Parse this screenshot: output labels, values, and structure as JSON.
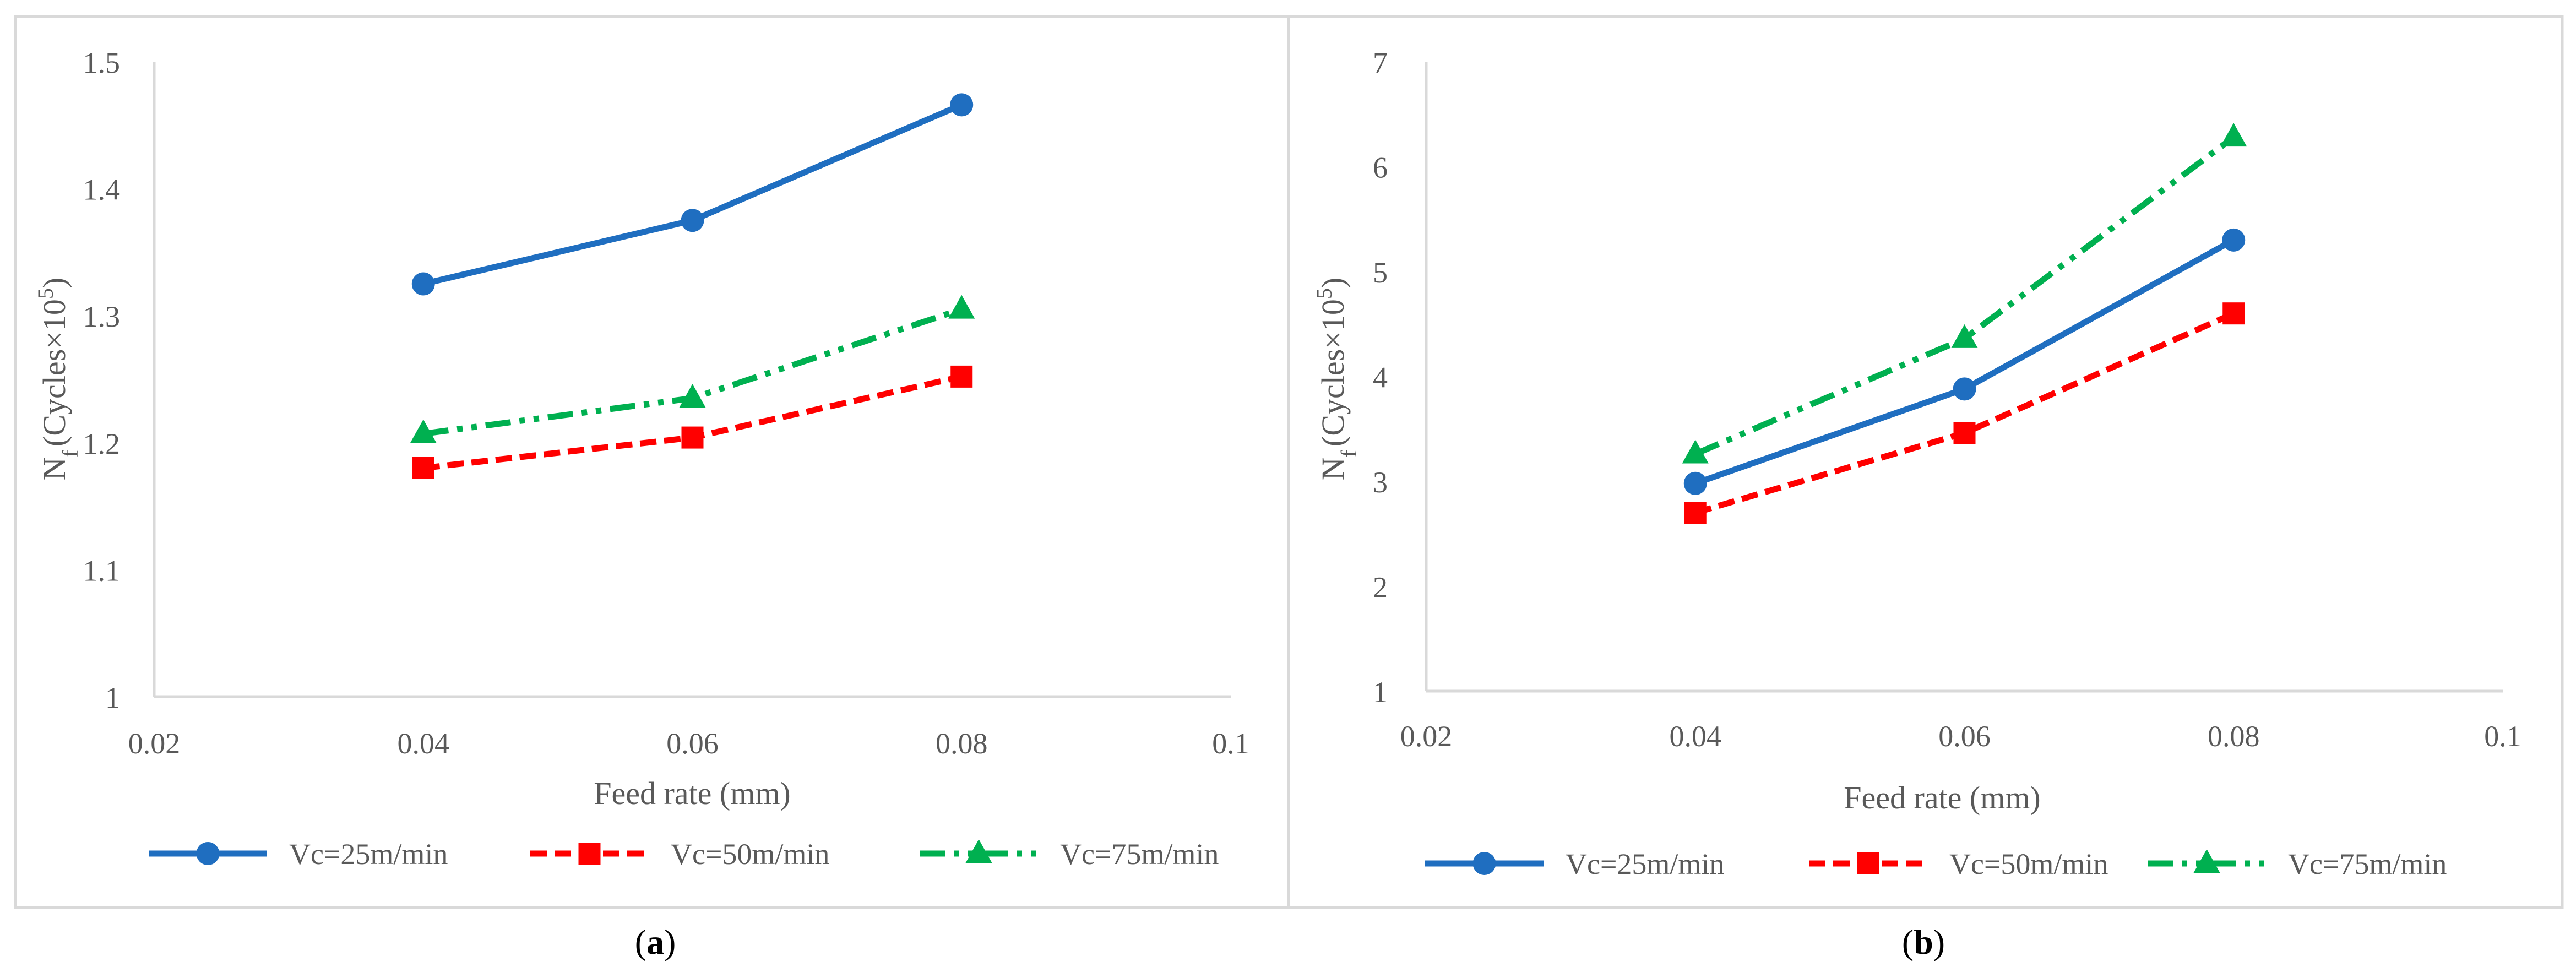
{
  "chart_data": [
    {
      "panel": "a",
      "caption": "a",
      "type": "line",
      "title": "",
      "xlabel": "Feed rate (mm)",
      "ylabel_main": "N",
      "ylabel_sub": "f",
      "ylabel_rest": "(Cycles×10",
      "ylabel_sup": "5",
      "ylabel_close": ")",
      "xlim": [
        0.02,
        0.1
      ],
      "ylim": [
        1,
        1.5
      ],
      "xticks": [
        0.02,
        0.04,
        0.06,
        0.08,
        0.1
      ],
      "xtick_labels": [
        "0.02",
        "0.04",
        "0.06",
        "0.08",
        "0.1"
      ],
      "yticks": [
        1,
        1.1,
        1.2,
        1.3,
        1.4,
        1.5
      ],
      "ytick_labels": [
        "1",
        "1.1",
        "1.2",
        "1.3",
        "1.4",
        "1.5"
      ],
      "grid": false,
      "legend_position": "bottom",
      "x": [
        0.04,
        0.06,
        0.08
      ],
      "series": [
        {
          "name": "Vc=25m/min",
          "values": [
            1.325,
            1.375,
            1.466
          ],
          "color": "#1F6EC0",
          "marker": "circle",
          "dash": "solid"
        },
        {
          "name": "Vc=50m/min",
          "values": [
            1.18,
            1.204,
            1.252
          ],
          "color": "#FF0000",
          "marker": "square",
          "dash": "dash"
        },
        {
          "name": "Vc=75m/min",
          "values": [
            1.207,
            1.235,
            1.305
          ],
          "color": "#00B050",
          "marker": "triangle",
          "dash": "dashdotdot"
        }
      ]
    },
    {
      "panel": "b",
      "caption": "b",
      "type": "line",
      "title": "",
      "xlabel": "Feed rate (mm)",
      "ylabel_main": "N",
      "ylabel_sub": "f",
      "ylabel_rest": "(Cycles×10",
      "ylabel_sup": "5",
      "ylabel_close": ")",
      "xlim": [
        0.02,
        0.1
      ],
      "ylim": [
        1,
        7
      ],
      "xticks": [
        0.02,
        0.04,
        0.06,
        0.08,
        0.1
      ],
      "xtick_labels": [
        "0.02",
        "0.04",
        "0.06",
        "0.08",
        "0.1"
      ],
      "yticks": [
        1,
        2,
        3,
        4,
        5,
        6,
        7
      ],
      "ytick_labels": [
        "1",
        "2",
        "3",
        "4",
        "5",
        "6",
        "7"
      ],
      "grid": false,
      "legend_position": "bottom",
      "x": [
        0.04,
        0.06,
        0.08
      ],
      "series": [
        {
          "name": "Vc=25m/min",
          "values": [
            2.98,
            3.88,
            5.3
          ],
          "color": "#1F6EC0",
          "marker": "circle",
          "dash": "solid"
        },
        {
          "name": "Vc=50m/min",
          "values": [
            2.7,
            3.46,
            4.6
          ],
          "color": "#FF0000",
          "marker": "square",
          "dash": "dash"
        },
        {
          "name": "Vc=75m/min",
          "values": [
            3.26,
            4.36,
            6.28
          ],
          "color": "#00B050",
          "marker": "triangle",
          "dash": "dashdotdot"
        }
      ]
    }
  ]
}
